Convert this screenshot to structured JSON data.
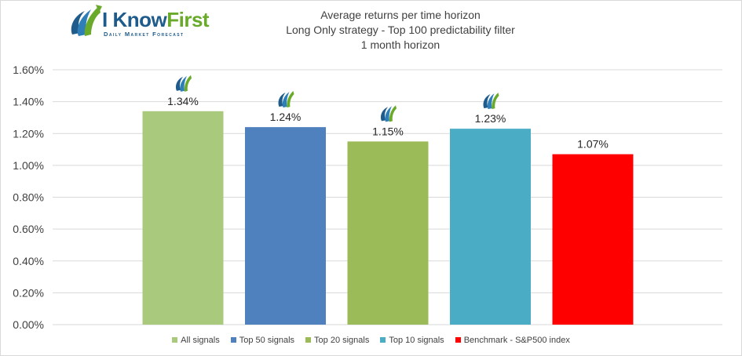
{
  "logo": {
    "name_part1": "I Know",
    "name_part2": "First",
    "tagline": "Daily Market Forecast"
  },
  "chart_data": {
    "type": "bar",
    "title_lines": [
      "Average returns per time horizon",
      "Long Only strategy - Top 100 predictability filter",
      "1 month horizon"
    ],
    "categories": [
      "All signals",
      "Top 50 signals",
      "Top 20 signals",
      "Top 10 signals",
      "Benchmark - S&P500 index"
    ],
    "values": [
      1.34,
      1.24,
      1.15,
      1.23,
      1.07
    ],
    "value_labels": [
      "1.34%",
      "1.24%",
      "1.15%",
      "1.23%",
      "1.07%"
    ],
    "colors": [
      "#a9c97c",
      "#4e81bd",
      "#9bbb59",
      "#4bacc6",
      "#ff0000"
    ],
    "logo_marker_on": [
      true,
      true,
      true,
      true,
      false
    ],
    "ylim": [
      0,
      1.6
    ],
    "yticks": [
      0,
      0.2,
      0.4,
      0.6,
      0.8,
      1.0,
      1.2,
      1.4,
      1.6
    ],
    "ytick_labels": [
      "0.00%",
      "0.20%",
      "0.40%",
      "0.60%",
      "0.80%",
      "1.00%",
      "1.20%",
      "1.40%",
      "1.60%"
    ],
    "grid": true,
    "legend_position": "bottom",
    "xlabel": "",
    "ylabel": ""
  }
}
